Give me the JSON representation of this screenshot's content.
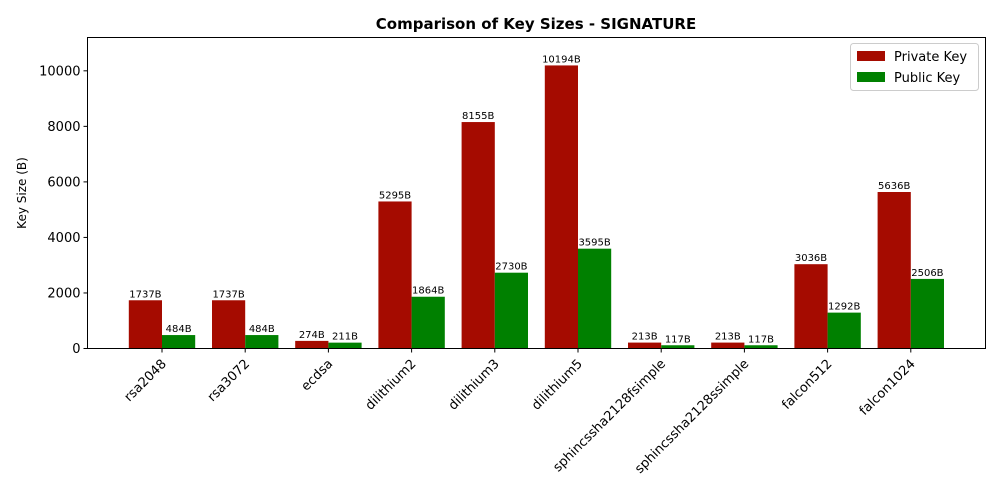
{
  "chart_data": {
    "type": "bar",
    "title": "Comparison of Key Sizes - SIGNATURE",
    "xlabel": "",
    "ylabel": "Key Size (B)",
    "ylim": [
      0,
      11200
    ],
    "yticks": [
      0,
      2000,
      4000,
      6000,
      8000,
      10000
    ],
    "ytick_labels": [
      "0",
      "2000",
      "4000",
      "6000",
      "8000",
      "10000"
    ],
    "categories": [
      "rsa2048",
      "rsa3072",
      "ecdsa",
      "dilithium2",
      "dilithium3",
      "dilithium5",
      "sphincssha2128fsimple",
      "sphincssha2128ssimple",
      "falcon512",
      "falcon1024"
    ],
    "series": [
      {
        "name": "Private Key",
        "color": "#a50b00",
        "values": [
          1737,
          1737,
          274,
          5295,
          8155,
          10194,
          213,
          213,
          3036,
          5636
        ],
        "labels": [
          "1737B",
          "1737B",
          "274B",
          "5295B",
          "8155B",
          "10194B",
          "213B",
          "213B",
          "3036B",
          "5636B"
        ]
      },
      {
        "name": "Public Key",
        "color": "#008000",
        "values": [
          484,
          484,
          211,
          1864,
          2730,
          3595,
          117,
          117,
          1292,
          2506
        ],
        "labels": [
          "484B",
          "484B",
          "211B",
          "1864B",
          "2730B",
          "3595B",
          "117B",
          "117B",
          "1292B",
          "2506B"
        ]
      }
    ],
    "grid": false,
    "legend_position": "top-right"
  }
}
